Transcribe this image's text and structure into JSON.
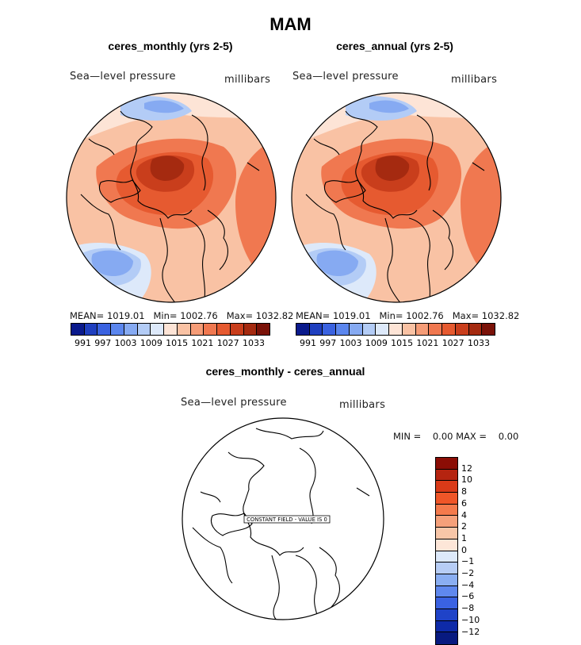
{
  "figure": {
    "title": "MAM",
    "panels": [
      {
        "title": "ceres_monthly (yrs 2-5)",
        "variable_label": "Sea—level pressure",
        "units_label": "millibars",
        "mean": "1019.01",
        "min": "1002.76",
        "max": "1032.82",
        "mean_label": "MEAN=",
        "min_label": "Min=",
        "max_label": "Max="
      },
      {
        "title": "ceres_annual (yrs 2-5)",
        "variable_label": "Sea—level pressure",
        "units_label": "millibars",
        "mean": "1019.01",
        "min": "1002.76",
        "max": "1032.82",
        "mean_label": "MEAN=",
        "min_label": "Min=",
        "max_label": "Max="
      }
    ],
    "colorbar": {
      "ticks": [
        "991",
        "997",
        "1003",
        "1009",
        "1015",
        "1021",
        "1027",
        "1033"
      ],
      "colors": [
        "#0a1a8c",
        "#1f3fbf",
        "#3a62e0",
        "#5b86ee",
        "#86aaf2",
        "#b3ccf6",
        "#dde9fa",
        "#fde4d6",
        "#f9c2a4",
        "#f59c77",
        "#f07850",
        "#e65a30",
        "#c93e1c",
        "#a52a10",
        "#7a1208"
      ]
    },
    "diff": {
      "title": "ceres_monthly - ceres_annual",
      "variable_label": "Sea—level pressure",
      "units_label": "millibars",
      "min_label": "MIN =",
      "min": "0.00",
      "max_label": "MAX =",
      "max": "0.00",
      "constant_field_text": "CONSTANT FIELD - VALUE IS 0",
      "colorbar": {
        "ticks": [
          "12",
          "10",
          "8",
          "6",
          "4",
          "2",
          "1",
          "0",
          "−1",
          "−2",
          "−4",
          "−6",
          "−8",
          "−10",
          "−12"
        ],
        "colors": [
          "#8b0d05",
          "#b52410",
          "#d93a18",
          "#ef5628",
          "#f47a4c",
          "#f5a07a",
          "#f8c6a8",
          "#fde6d8",
          "#dde9fa",
          "#b7cdf5",
          "#8aaef2",
          "#5f88ee",
          "#3a62e2",
          "#1f43c8",
          "#0e2aa8",
          "#081a80"
        ]
      }
    }
  }
}
